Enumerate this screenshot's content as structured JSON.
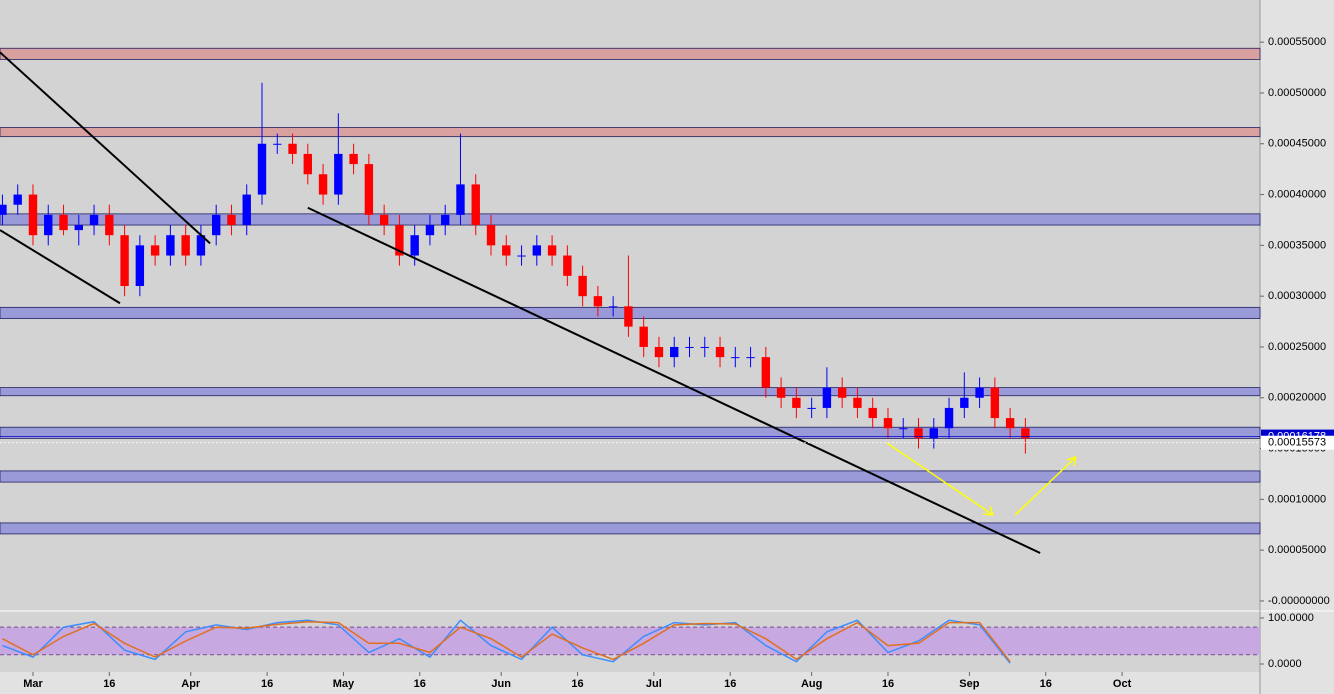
{
  "chart_data": [
    {
      "type": "candlestick",
      "x": [
        -6,
        -3,
        0,
        3,
        6,
        9,
        12,
        15,
        18,
        21,
        24,
        27,
        30,
        33,
        36,
        39,
        42,
        45,
        48,
        51,
        54,
        57,
        60,
        63,
        66,
        69,
        72,
        75,
        78,
        81,
        84,
        87,
        90,
        93,
        96,
        99,
        102,
        105,
        108,
        111,
        114,
        117,
        120,
        123,
        126,
        129,
        132,
        135,
        138,
        141,
        144,
        147,
        150,
        153,
        156,
        159,
        162,
        165,
        168,
        171,
        174,
        177,
        180,
        183,
        186,
        189,
        192,
        195
      ],
      "open": [
        0.00038,
        0.00039,
        0.0004,
        0.00036,
        0.00038,
        0.000365,
        0.00037,
        0.00038,
        0.00036,
        0.00031,
        0.00035,
        0.00034,
        0.00036,
        0.00034,
        0.00036,
        0.00038,
        0.00037,
        0.0004,
        0.00045,
        0.00045,
        0.00044,
        0.00042,
        0.0004,
        0.00044,
        0.00043,
        0.00038,
        0.00037,
        0.00034,
        0.00036,
        0.00037,
        0.00038,
        0.00041,
        0.00037,
        0.00035,
        0.00034,
        0.00034,
        0.00035,
        0.00034,
        0.00032,
        0.0003,
        0.00029,
        0.00029,
        0.00027,
        0.00025,
        0.00024,
        0.00025,
        0.00025,
        0.00025,
        0.00024,
        0.00024,
        0.00024,
        0.00021,
        0.0002,
        0.00019,
        0.00019,
        0.00021,
        0.0002,
        0.00019,
        0.00018,
        0.00017,
        0.00017,
        0.00016,
        0.00017,
        0.00019,
        0.0002,
        0.00021,
        0.00018,
        0.00017
      ],
      "high": [
        0.0004,
        0.00041,
        0.00041,
        0.00039,
        0.00039,
        0.00038,
        0.00039,
        0.00039,
        0.00037,
        0.00036,
        0.00036,
        0.00037,
        0.00037,
        0.00037,
        0.00039,
        0.00039,
        0.00041,
        0.00051,
        0.00046,
        0.00046,
        0.00045,
        0.00043,
        0.00048,
        0.00045,
        0.00044,
        0.00039,
        0.00038,
        0.00037,
        0.00038,
        0.00039,
        0.00046,
        0.00042,
        0.00038,
        0.00036,
        0.00035,
        0.00036,
        0.00036,
        0.00035,
        0.00033,
        0.00031,
        0.0003,
        0.00034,
        0.00028,
        0.00026,
        0.00026,
        0.00026,
        0.00026,
        0.00026,
        0.00025,
        0.00025,
        0.00025,
        0.00022,
        0.00021,
        0.0002,
        0.00023,
        0.00022,
        0.00021,
        0.0002,
        0.00019,
        0.00018,
        0.00018,
        0.00018,
        0.0002,
        0.000225,
        0.00022,
        0.00022,
        0.00019,
        0.00018
      ],
      "low": [
        0.00037,
        0.00038,
        0.00035,
        0.00035,
        0.00036,
        0.00035,
        0.00036,
        0.00035,
        0.0003,
        0.0003,
        0.00033,
        0.00033,
        0.00033,
        0.00033,
        0.00035,
        0.00036,
        0.00036,
        0.00039,
        0.00044,
        0.00043,
        0.00041,
        0.00039,
        0.00039,
        0.00042,
        0.00037,
        0.00036,
        0.00033,
        0.00033,
        0.00035,
        0.00036,
        0.00037,
        0.00036,
        0.00034,
        0.00033,
        0.00033,
        0.00033,
        0.00033,
        0.00031,
        0.00029,
        0.00028,
        0.00028,
        0.00026,
        0.00024,
        0.00023,
        0.00023,
        0.00024,
        0.00024,
        0.00023,
        0.00023,
        0.00023,
        0.0002,
        0.00019,
        0.00018,
        0.00018,
        0.00018,
        0.00019,
        0.00018,
        0.00017,
        0.00016,
        0.00016,
        0.00015,
        0.00015,
        0.00016,
        0.00018,
        0.00019,
        0.00017,
        0.00016,
        0.000145
      ],
      "close": [
        0.00039,
        0.0004,
        0.00036,
        0.00038,
        0.000365,
        0.00037,
        0.00038,
        0.00036,
        0.00031,
        0.00035,
        0.00034,
        0.00036,
        0.00034,
        0.00036,
        0.00038,
        0.00037,
        0.0004,
        0.00045,
        0.00045,
        0.00044,
        0.00042,
        0.0004,
        0.00044,
        0.00043,
        0.00038,
        0.00037,
        0.00034,
        0.00036,
        0.00037,
        0.00038,
        0.00041,
        0.00037,
        0.00035,
        0.00034,
        0.00034,
        0.00035,
        0.00034,
        0.00032,
        0.0003,
        0.00029,
        0.00029,
        0.00027,
        0.00025,
        0.00024,
        0.00025,
        0.00025,
        0.00025,
        0.00024,
        0.00024,
        0.00024,
        0.00021,
        0.0002,
        0.00019,
        0.00019,
        0.00021,
        0.0002,
        0.00019,
        0.00018,
        0.00017,
        0.00017,
        0.00016,
        0.00017,
        0.00019,
        0.0002,
        0.00021,
        0.00018,
        0.00017,
        0.00016
      ],
      "up_color": "#0000ff",
      "down_color": "#ff0000",
      "zones": [
        {
          "range": [
            0.000533,
            0.000544
          ],
          "color": "#d9a0a0"
        },
        {
          "range": [
            0.000457,
            0.000466
          ],
          "color": "#d9a0a0"
        },
        {
          "range": [
            0.00037,
            0.000381
          ],
          "color": "#9a9ad9"
        },
        {
          "range": [
            0.000278,
            0.000289
          ],
          "color": "#9a9ad9"
        },
        {
          "range": [
            0.000202,
            0.00021
          ],
          "color": "#9a9ad9"
        },
        {
          "range": [
            0.00016,
            0.000171
          ],
          "color": "#9a9ad9"
        },
        {
          "range": [
            0.000117,
            0.000128
          ],
          "color": "#9a9ad9"
        },
        {
          "range": [
            6.6e-05,
            7.68e-05
          ],
          "color": "#9a9ad9"
        }
      ],
      "trend_lines": [
        [
          -6.48,
          0.00054,
          34.8,
          0.000352
        ],
        [
          -6.48,
          0.000365,
          17.1,
          0.000293
        ],
        [
          54.0,
          0.000387,
          197.9,
          4.72e-05
        ]
      ],
      "price_labels": [
        {
          "value": 0.00016178,
          "label": "0.00016178"
        },
        {
          "value": 0.00015573,
          "label": "0.00015573"
        }
      ],
      "xlim": [
        -6.48,
        241.1
      ],
      "xticks": [
        {
          "value": 0,
          "label": "Mar"
        },
        {
          "value": 15,
          "label": "16"
        },
        {
          "value": 31,
          "label": "Apr"
        },
        {
          "value": 46,
          "label": "16"
        },
        {
          "value": 61,
          "label": "May"
        },
        {
          "value": 76,
          "label": "16"
        },
        {
          "value": 92,
          "label": "Jun"
        },
        {
          "value": 107,
          "label": "16"
        },
        {
          "value": 122,
          "label": "Jul"
        },
        {
          "value": 137,
          "label": "16"
        },
        {
          "value": 153,
          "label": "Aug"
        },
        {
          "value": 168,
          "label": "16"
        },
        {
          "value": 184,
          "label": "Sep"
        },
        {
          "value": 199,
          "label": "16"
        },
        {
          "value": 214,
          "label": "Oct"
        }
      ],
      "ylim": [
        -8.9e-06,
        0.0005915
      ],
      "yticks": [
        {
          "value": 0.00055,
          "label": "0.00055000"
        },
        {
          "value": 0.0005,
          "label": "0.00050000"
        },
        {
          "value": 0.00045,
          "label": "0.00045000"
        },
        {
          "value": 0.0004,
          "label": "0.00040000"
        },
        {
          "value": 0.00035,
          "label": "0.00035000"
        },
        {
          "value": 0.0003,
          "label": "0.00030000"
        },
        {
          "value": 0.00025,
          "label": "0.00025000"
        },
        {
          "value": 0.0002,
          "label": "0.00020000"
        },
        {
          "value": 0.00015,
          "label": "0.00015000"
        },
        {
          "value": 0.0001,
          "label": "0.00010000"
        },
        {
          "value": 5e-05,
          "label": "0.00005000"
        },
        {
          "value": 0,
          "label": "-0.00000000"
        }
      ]
    },
    {
      "type": "line",
      "x": [
        -6,
        0,
        6,
        12,
        18,
        24,
        30,
        36,
        42,
        48,
        54,
        60,
        66,
        72,
        78,
        84,
        90,
        96,
        102,
        108,
        114,
        120,
        126,
        132,
        138,
        144,
        150,
        156,
        162,
        168,
        174,
        180,
        186,
        192
      ],
      "series": [
        {
          "color": "#3d8eff",
          "values": [
            40,
            15,
            80,
            92,
            30,
            10,
            70,
            85,
            75,
            90,
            95,
            85,
            25,
            55,
            15,
            95,
            40,
            10,
            80,
            20,
            5,
            60,
            90,
            85,
            90,
            40,
            5,
            70,
            95,
            25,
            50,
            95,
            85,
            2
          ]
        },
        {
          "color": "#e07020",
          "values": [
            55,
            20,
            60,
            88,
            45,
            15,
            50,
            80,
            78,
            86,
            92,
            90,
            45,
            45,
            25,
            80,
            55,
            15,
            65,
            35,
            10,
            45,
            85,
            88,
            87,
            55,
            10,
            55,
            90,
            40,
            45,
            90,
            90,
            5
          ]
        }
      ],
      "bands": [
        20,
        80
      ],
      "band_color": "#c8a8e0",
      "xlim": [
        -6.48,
        241.1
      ],
      "ylim": [
        -17.4,
        113
      ],
      "yticks": [
        {
          "value": 100,
          "label": "100.0000"
        },
        {
          "value": 0,
          "label": "0.0000"
        }
      ]
    }
  ]
}
